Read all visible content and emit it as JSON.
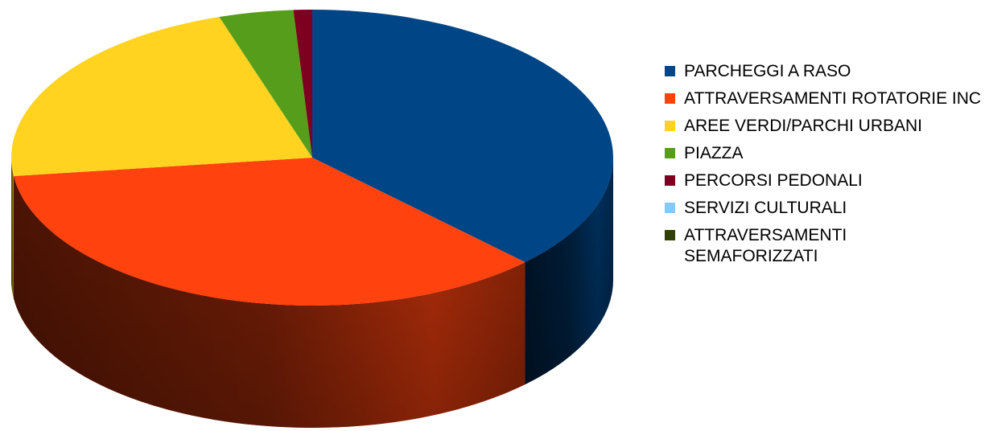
{
  "chart_data": {
    "type": "pie",
    "three_d": true,
    "legend_position": "right",
    "title": "",
    "slices": [
      {
        "label": "PARCHEGGI  A RASO",
        "value": 37.5,
        "color": "#004586"
      },
      {
        "label": "ATTRAVERSAMENTI ROTATORIE INC",
        "value": 35.5,
        "color": "#ff420e"
      },
      {
        "label": "AREE VERDI/PARCHI URBANI",
        "value": 22.0,
        "color": "#ffd320"
      },
      {
        "label": "PIAZZA",
        "value": 4.0,
        "color": "#579d1c"
      },
      {
        "label": "PERCORSI PEDONALI",
        "value": 1.0,
        "color": "#7e0021"
      },
      {
        "label": "SERVIZI CULTURALI",
        "value": 0,
        "color": "#83caff"
      },
      {
        "label": "ATTRAVERSAMENTI SEMAFORIZZATI",
        "value": 0,
        "color": "#314004"
      }
    ]
  }
}
